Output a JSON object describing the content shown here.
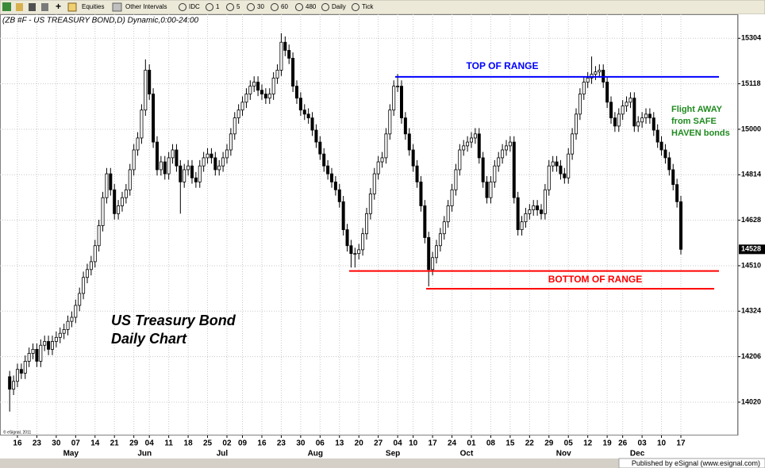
{
  "toolbar": [
    "Equities",
    "Other Intervals",
    "IDC",
    "1",
    "5",
    "30",
    "60",
    "480",
    "Daily",
    "Tick"
  ],
  "chart_data": {
    "type": "candlestick",
    "title": "(ZB #F - US TREASURY BOND,D) Dynamic,0:00-24:00",
    "categories": [
      null,
      null,
      "16",
      null,
      null,
      null,
      null,
      "23",
      null,
      null,
      null,
      null,
      "30",
      null,
      null,
      null,
      null,
      "07",
      null,
      null,
      null,
      null,
      "14",
      null,
      null,
      null,
      null,
      "21",
      null,
      null,
      null,
      null,
      "29",
      null,
      null,
      null,
      "04",
      null,
      null,
      null,
      null,
      "11",
      null,
      null,
      null,
      null,
      "18",
      null,
      null,
      null,
      null,
      "25",
      null,
      null,
      null,
      null,
      "02",
      null,
      null,
      null,
      "09",
      null,
      null,
      null,
      null,
      "16",
      null,
      null,
      null,
      null,
      "23",
      null,
      null,
      null,
      null,
      "30",
      null,
      null,
      null,
      null,
      "06",
      null,
      null,
      null,
      null,
      "13",
      null,
      null,
      null,
      null,
      "20",
      null,
      null,
      null,
      null,
      "27",
      null,
      null,
      null,
      null,
      "04",
      null,
      null,
      null,
      "10",
      null,
      null,
      null,
      null,
      "17",
      null,
      null,
      null,
      null,
      "24",
      null,
      null,
      null,
      null,
      "01",
      null,
      null,
      null,
      null,
      "08",
      null,
      null,
      null,
      null,
      "15",
      null,
      null,
      null,
      null,
      "22",
      null,
      null,
      null,
      null,
      "29",
      null,
      null,
      null,
      null,
      "05",
      null,
      null,
      null,
      null,
      "12",
      null,
      null,
      null,
      null,
      "19",
      null,
      null,
      null,
      "26",
      null,
      null,
      null,
      null,
      "03",
      null,
      null,
      null,
      null,
      "10",
      null,
      null,
      null,
      null,
      "17"
    ],
    "months": [
      null,
      null,
      null,
      null,
      null,
      null,
      null,
      null,
      null,
      null,
      null,
      null,
      null,
      null,
      null,
      null,
      null,
      "May",
      null,
      null,
      null,
      null,
      null,
      null,
      null,
      null,
      null,
      null,
      null,
      null,
      null,
      null,
      null,
      null,
      null,
      null,
      "Jun",
      null,
      null,
      null,
      null,
      null,
      null,
      null,
      null,
      null,
      null,
      null,
      null,
      null,
      null,
      null,
      null,
      null,
      null,
      null,
      "Jul",
      null,
      null,
      null,
      null,
      null,
      null,
      null,
      null,
      null,
      null,
      null,
      null,
      null,
      null,
      null,
      null,
      null,
      null,
      null,
      null,
      null,
      null,
      null,
      "Aug",
      null,
      null,
      null,
      null,
      null,
      null,
      null,
      null,
      null,
      null,
      null,
      null,
      null,
      null,
      null,
      null,
      null,
      null,
      null,
      "Sep",
      null,
      null,
      null,
      null,
      null,
      null,
      null,
      null,
      null,
      null,
      null,
      null,
      null,
      null,
      null,
      null,
      null,
      null,
      "Oct",
      null,
      null,
      null,
      null,
      null,
      null,
      null,
      null,
      null,
      null,
      null,
      null,
      null,
      null,
      null,
      null,
      null,
      null,
      null,
      null,
      null,
      null,
      null,
      null,
      "Nov",
      null,
      null,
      null,
      null,
      null,
      null,
      null,
      null,
      null,
      null,
      null,
      null,
      null,
      null,
      null,
      null,
      null,
      null,
      "Dec",
      null,
      null,
      null,
      null,
      null,
      null,
      null,
      null,
      null,
      null
    ],
    "open": [
      141.5,
      141.07,
      141.34,
      141.75,
      141.62,
      142.03,
      142.3,
      142.44,
      142.03,
      142.58,
      142.71,
      142.44,
      142.71,
      142.85,
      142.99,
      143.12,
      143.4,
      143.54,
      143.95,
      144.36,
      144.91,
      145.18,
      145.45,
      146.0,
      146.69,
      147.65,
      148.47,
      147.92,
      147.1,
      147.37,
      147.65,
      147.92,
      148.61,
      149.29,
      149.7,
      150.66,
      152.03,
      151.21,
      149.56,
      148.61,
      148.88,
      148.47,
      149.02,
      149.29,
      148.74,
      148.19,
      148.61,
      148.74,
      148.33,
      148.19,
      148.74,
      149.02,
      149.15,
      149.02,
      148.61,
      148.74,
      149.02,
      149.29,
      149.84,
      150.39,
      150.66,
      150.93,
      151.21,
      151.48,
      151.62,
      151.34,
      151.21,
      151.07,
      151.21,
      151.76,
      152.03,
      152.99,
      152.71,
      152.44,
      151.48,
      151.07,
      150.66,
      150.52,
      150.39,
      149.97,
      149.56,
      149.15,
      148.74,
      148.47,
      148.19,
      147.92,
      147.51,
      146.55,
      146.0,
      145.73,
      145.73,
      145.86,
      146.41,
      147.1,
      147.78,
      148.47,
      148.88,
      149.02,
      149.84,
      150.66,
      151.48,
      151.48,
      150.39,
      149.84,
      149.29,
      148.74,
      148.19,
      147.37,
      146.28,
      145.18,
      145.59,
      146.0,
      146.41,
      146.82,
      147.37,
      147.92,
      148.61,
      149.29,
      149.43,
      149.56,
      149.7,
      149.84,
      149.02,
      148.19,
      147.65,
      148.19,
      148.74,
      149.02,
      149.29,
      149.43,
      149.56,
      147.65,
      146.55,
      146.82,
      147.1,
      147.23,
      147.37,
      147.23,
      147.1,
      147.92,
      148.74,
      148.88,
      148.74,
      148.47,
      148.33,
      149.15,
      149.84,
      150.52,
      151.21,
      151.62,
      151.76,
      151.89,
      151.97,
      152.03,
      151.62,
      150.93,
      150.39,
      150.11,
      150.52,
      150.8,
      150.93,
      151.07,
      150.11,
      150.25,
      150.39,
      150.52,
      150.39,
      149.97,
      149.56,
      149.29,
      149.02,
      148.61,
      148.1,
      147.51
    ],
    "high": [
      141.7,
      141.54,
      141.95,
      141.95,
      142.23,
      142.5,
      142.64,
      142.64,
      142.78,
      142.91,
      142.91,
      142.91,
      143.05,
      143.19,
      143.32,
      143.6,
      143.74,
      144.15,
      144.56,
      145.11,
      145.38,
      145.65,
      146.2,
      146.89,
      147.85,
      148.67,
      148.67,
      148.12,
      147.57,
      147.85,
      148.12,
      148.81,
      149.49,
      149.9,
      150.86,
      152.4,
      152.23,
      151.41,
      149.76,
      149.08,
      149.08,
      149.22,
      149.49,
      149.49,
      148.94,
      148.81,
      148.94,
      148.94,
      148.53,
      148.94,
      149.22,
      149.35,
      149.35,
      149.22,
      148.94,
      149.22,
      149.49,
      150.04,
      150.59,
      150.86,
      151.13,
      151.41,
      151.68,
      151.82,
      151.82,
      151.54,
      151.41,
      151.41,
      151.96,
      152.23,
      153.3,
      153.19,
      152.91,
      152.64,
      151.68,
      151.27,
      150.86,
      150.72,
      150.59,
      150.17,
      149.76,
      149.35,
      148.94,
      148.67,
      148.39,
      148.12,
      147.71,
      146.75,
      146.2,
      145.93,
      146.06,
      146.61,
      147.3,
      147.98,
      148.67,
      149.08,
      149.22,
      150.04,
      150.86,
      151.68,
      151.9,
      151.68,
      150.59,
      150.04,
      149.49,
      148.94,
      148.39,
      147.57,
      146.48,
      145.79,
      146.2,
      146.61,
      147.02,
      147.57,
      148.12,
      148.81,
      149.49,
      149.63,
      149.76,
      149.9,
      150.04,
      150.04,
      149.22,
      148.39,
      148.39,
      148.94,
      149.22,
      149.49,
      149.63,
      149.76,
      149.76,
      147.85,
      147.02,
      147.3,
      147.43,
      147.57,
      147.57,
      147.43,
      148.12,
      148.94,
      149.08,
      149.08,
      148.94,
      148.67,
      149.35,
      150.04,
      150.72,
      151.41,
      151.82,
      151.96,
      152.5,
      152.17,
      152.23,
      152.23,
      151.82,
      151.13,
      150.59,
      150.72,
      151.0,
      151.13,
      151.27,
      151.27,
      150.45,
      150.59,
      150.72,
      150.72,
      150.59,
      150.17,
      149.76,
      149.49,
      149.22,
      148.81,
      148.3,
      147.71
    ],
    "low": [
      140.3,
      140.87,
      141.14,
      141.42,
      141.42,
      141.83,
      142.1,
      141.83,
      141.83,
      142.38,
      142.24,
      142.24,
      142.51,
      142.65,
      142.79,
      142.92,
      143.2,
      143.34,
      143.75,
      144.16,
      144.71,
      144.98,
      145.25,
      145.8,
      146.49,
      147.45,
      147.72,
      146.9,
      146.9,
      147.17,
      147.45,
      147.72,
      148.41,
      149.09,
      149.5,
      150.46,
      151.01,
      149.36,
      148.41,
      148.41,
      148.27,
      148.27,
      148.82,
      148.54,
      147.1,
      147.99,
      148.41,
      148.13,
      147.99,
      147.99,
      148.54,
      148.82,
      148.82,
      148.41,
      148.41,
      148.54,
      148.82,
      149.09,
      149.64,
      150.19,
      150.46,
      150.73,
      151.01,
      151.28,
      151.14,
      151.01,
      150.87,
      150.87,
      151.01,
      151.56,
      151.83,
      152.51,
      152.24,
      151.28,
      150.87,
      150.46,
      150.32,
      150.19,
      149.77,
      149.36,
      148.95,
      148.54,
      148.27,
      147.99,
      147.72,
      147.31,
      146.35,
      145.8,
      145.25,
      145.25,
      145.53,
      145.66,
      146.21,
      146.9,
      147.58,
      148.27,
      148.68,
      148.82,
      149.64,
      150.46,
      151.28,
      150.19,
      149.64,
      149.09,
      148.54,
      147.99,
      147.17,
      146.08,
      144.6,
      144.98,
      145.39,
      145.8,
      146.21,
      146.62,
      147.17,
      147.72,
      148.41,
      149.09,
      149.23,
      149.36,
      149.5,
      148.82,
      147.99,
      147.45,
      147.45,
      147.99,
      148.54,
      148.82,
      149.09,
      149.23,
      147.45,
      146.35,
      146.35,
      146.62,
      146.9,
      147.03,
      147.03,
      146.9,
      146.9,
      147.72,
      148.54,
      148.54,
      148.27,
      148.13,
      148.13,
      148.95,
      149.64,
      150.32,
      151.01,
      151.42,
      151.56,
      151.69,
      151.77,
      151.42,
      150.73,
      150.19,
      149.91,
      149.91,
      150.32,
      150.6,
      150.73,
      149.91,
      149.91,
      150.05,
      150.19,
      150.19,
      149.77,
      149.36,
      149.09,
      148.82,
      148.41,
      147.9,
      147.31,
      145.7
    ],
    "close": [
      141.07,
      141.34,
      141.75,
      141.62,
      142.03,
      142.3,
      142.44,
      142.03,
      142.58,
      142.71,
      142.44,
      142.71,
      142.85,
      142.99,
      143.12,
      143.4,
      143.54,
      143.95,
      144.36,
      144.91,
      145.18,
      145.45,
      146.0,
      146.69,
      147.65,
      148.47,
      147.92,
      147.1,
      147.37,
      147.65,
      147.92,
      148.61,
      149.29,
      149.7,
      150.66,
      152.03,
      151.21,
      149.56,
      148.61,
      148.88,
      148.47,
      149.02,
      149.29,
      148.74,
      148.19,
      148.61,
      148.74,
      148.33,
      148.19,
      148.74,
      149.02,
      149.15,
      149.02,
      148.61,
      148.74,
      149.02,
      149.29,
      149.84,
      150.39,
      150.66,
      150.93,
      151.21,
      151.48,
      151.62,
      151.34,
      151.21,
      151.07,
      151.21,
      151.76,
      152.03,
      152.99,
      152.71,
      152.44,
      151.48,
      151.07,
      150.66,
      150.52,
      150.39,
      149.97,
      149.56,
      149.15,
      148.74,
      148.47,
      148.19,
      147.92,
      147.51,
      146.55,
      146.0,
      145.73,
      145.73,
      145.86,
      146.41,
      147.1,
      147.78,
      148.47,
      148.88,
      149.02,
      149.84,
      150.66,
      151.48,
      151.48,
      150.39,
      149.84,
      149.29,
      148.74,
      148.19,
      147.37,
      146.28,
      145.18,
      145.59,
      146.0,
      146.41,
      146.82,
      147.37,
      147.92,
      148.61,
      149.29,
      149.43,
      149.56,
      149.7,
      149.84,
      149.02,
      148.19,
      147.65,
      148.19,
      148.74,
      149.02,
      149.29,
      149.43,
      149.56,
      147.65,
      146.55,
      146.82,
      147.1,
      147.23,
      147.37,
      147.23,
      147.1,
      147.92,
      148.74,
      148.88,
      148.74,
      148.47,
      148.33,
      149.15,
      149.84,
      150.52,
      151.21,
      151.62,
      151.76,
      151.89,
      151.97,
      152.03,
      151.62,
      150.93,
      150.39,
      150.11,
      150.52,
      150.8,
      150.93,
      151.07,
      150.11,
      150.25,
      150.39,
      150.52,
      150.39,
      149.97,
      149.56,
      149.29,
      149.02,
      148.61,
      148.1,
      147.51,
      145.875
    ],
    "up_color": "#ffffff",
    "down_color": "#000000",
    "ylim": [
      139.48,
      153.95
    ],
    "yticks": [
      {
        "value": 140.625,
        "label": "14020"
      },
      {
        "value": 142.1875,
        "label": "14206"
      },
      {
        "value": 143.75,
        "label": "14324"
      },
      {
        "value": 145.3125,
        "label": "14510"
      },
      {
        "value": 146.875,
        "label": "14628"
      },
      {
        "value": 148.4375,
        "label": "14814"
      },
      {
        "value": 150.0,
        "label": "15000"
      },
      {
        "value": 151.5625,
        "label": "15118"
      },
      {
        "value": 153.125,
        "label": "15304"
      }
    ],
    "last_price": {
      "value": 145.875,
      "label": "14528"
    },
    "grid": true,
    "lines": [
      {
        "label": "TOP OF RANGE",
        "value": 151.8,
        "color": "#0000ff"
      },
      {
        "label": "BOTTOM OF RANGE",
        "value": 145.13,
        "color": "#ff0000"
      },
      {
        "value": 144.52,
        "color": "#ff0000"
      }
    ],
    "notes": [
      "US Treasury Bond",
      "Daily Chart",
      "Flight AWAY",
      "from SAFE",
      "HAVEN bonds"
    ],
    "copyright": "© eSignal, 2011"
  },
  "footer": "Published by eSignal (www.esignal.com)"
}
